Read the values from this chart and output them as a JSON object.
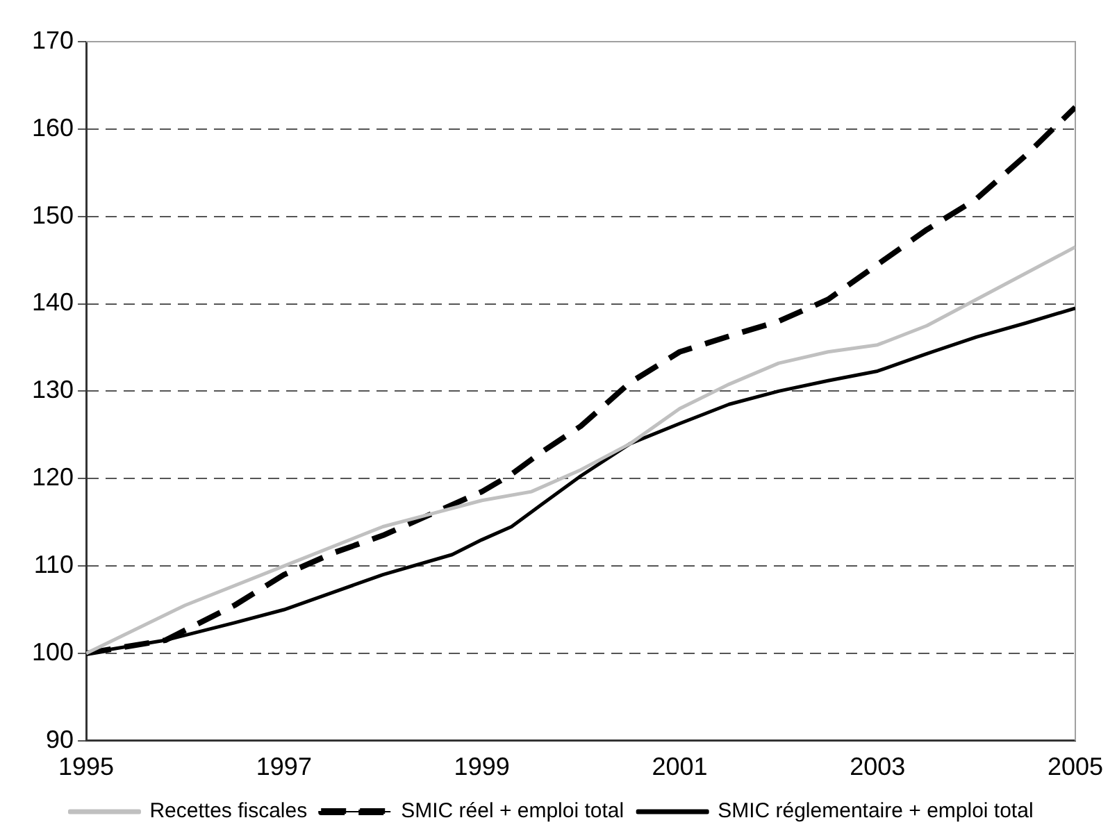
{
  "chart_data": {
    "type": "line",
    "xlim": [
      1995,
      2005
    ],
    "xticks": [
      1995,
      1997,
      1999,
      2001,
      2003,
      2005
    ],
    "ylim": [
      90,
      170
    ],
    "yticks": [
      90,
      100,
      110,
      120,
      130,
      140,
      150,
      160,
      170
    ],
    "grid": "y",
    "legend": "bottom",
    "marker": "none",
    "series": [
      {
        "name": "Recettes fiscales",
        "color": "#c0c0c0",
        "line_style": "solid",
        "x": [
          1995,
          1996,
          1997,
          1998,
          1998.5,
          1999,
          1999.5,
          2000,
          2000.5,
          2001,
          2001.5,
          2002,
          2002.5,
          2003,
          2003.5,
          2004,
          2004.5,
          2005
        ],
        "values": [
          100,
          105.5,
          110,
          114.5,
          116,
          117.5,
          118.5,
          121,
          124,
          128,
          130.8,
          133.2,
          134.5,
          135.3,
          137.5,
          140.5,
          143.5,
          146.5
        ]
      },
      {
        "name": "SMIC réel + emploi total",
        "color": "#000000",
        "line_style": "dashed",
        "x": [
          1995,
          1995.8,
          1996.5,
          1997,
          1997.5,
          1998,
          1998.5,
          1999,
          1999.3,
          1999.6,
          2000,
          2000.5,
          2001,
          2001.5,
          2002,
          2002.5,
          2003,
          2003.5,
          2004,
          2004.5,
          2005
        ],
        "values": [
          100,
          101.5,
          105.5,
          109,
          111.5,
          113.5,
          116,
          118.5,
          120.5,
          123,
          126,
          131,
          134.5,
          136.3,
          138,
          140.5,
          144.5,
          148.5,
          152,
          157,
          162.5
        ]
      },
      {
        "name": "SMIC réglementaire + emploi total",
        "color": "#000000",
        "line_style": "solid",
        "x": [
          1995,
          1995.8,
          1996.5,
          1997,
          1997.5,
          1998,
          1998.7,
          1999,
          1999.3,
          1999.6,
          2000,
          2000.5,
          2001,
          2001.5,
          2002,
          2002.5,
          2003,
          2003.5,
          2004,
          2004.5,
          2005
        ],
        "values": [
          100,
          101.5,
          103.5,
          105,
          107,
          109,
          111.3,
          113,
          114.5,
          117,
          120.3,
          124,
          126.3,
          128.5,
          130,
          131.2,
          132.3,
          134.3,
          136.2,
          137.8,
          139.5
        ]
      }
    ]
  }
}
